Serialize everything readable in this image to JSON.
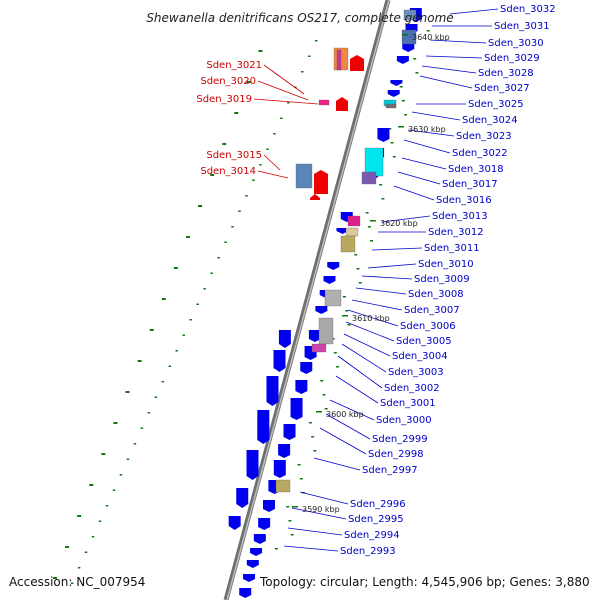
{
  "title": "Shewanella denitrificans OS217, complete genome",
  "footer": {
    "accession": "Accession: NC_007954",
    "summary": "Topology: circular; Length: 4,545,906 bp; Genes: 3,880"
  },
  "colors": {
    "backbone": "#888888",
    "forward_gene": "#0000ee",
    "reverse_gene": "#ee0000",
    "tick": "#117711",
    "label_forward": "#0000cc",
    "label_reverse": "#cc0000"
  },
  "kbp_markers": [
    "3640 kbp",
    "3630 kbp",
    "3620 kbp",
    "3610 kbp",
    "3600 kbp",
    "3590 kbp"
  ],
  "labels_reverse": [
    "Sden_3021",
    "Sden_3020",
    "Sden_3019",
    "Sden_3015",
    "Sden_3014"
  ],
  "labels_forward": [
    "Sden_3032",
    "Sden_3031",
    "Sden_3030",
    "Sden_3029",
    "Sden_3028",
    "Sden_3027",
    "Sden_3025",
    "Sden_3024",
    "Sden_3023",
    "Sden_3022",
    "Sden_3018",
    "Sden_3017",
    "Sden_3016",
    "Sden_3013",
    "Sden_3012",
    "Sden_3011",
    "Sden_3010",
    "Sden_3009",
    "Sden_3008",
    "Sden_3007",
    "Sden_3006",
    "Sden_3005",
    "Sden_3004",
    "Sden_3003",
    "Sden_3002",
    "Sden_3001",
    "Sden_3000",
    "Sden_2999",
    "Sden_2998",
    "Sden_2997",
    "Sden_2996",
    "Sden_2995",
    "Sden_2994",
    "Sden_2993"
  ]
}
